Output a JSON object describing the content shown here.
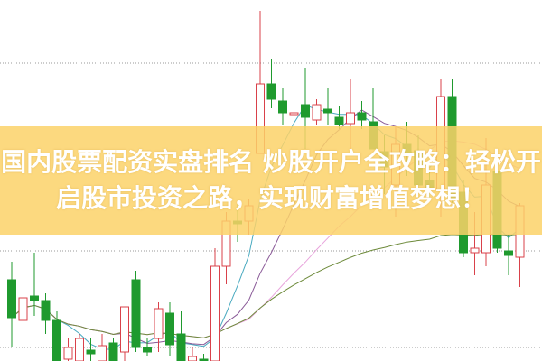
{
  "headline": {
    "line1": "国内股票配资实盘排名 炒股开户全攻略：轻松开",
    "line2": "启股市投资之路，实现财富增值梦想！"
  },
  "chart_data": {
    "type": "candlestick",
    "title": "",
    "xlabel": "",
    "ylabel": "",
    "ylim": [
      0,
      100
    ],
    "grid": "horizontal-dotted",
    "colors": {
      "up": "#d9414a",
      "down": "#1f9a2e",
      "ma": [
        "#4aaac0",
        "#8a5a98",
        "#e8a4dc",
        "#6d8a3a"
      ],
      "banner": "#fcd269"
    },
    "moving_averages": [
      5,
      10,
      20,
      60
    ],
    "candles": [
      [
        22.5,
        27.5,
        3.75,
        12
      ],
      [
        11.25,
        20.5,
        9.5,
        17.5
      ],
      [
        18,
        30,
        12.5,
        16.75
      ],
      [
        16.75,
        18.75,
        7.5,
        11.25
      ],
      [
        11.25,
        13.75,
        0,
        0
      ],
      [
        0.5,
        6.25,
        0,
        3.75
      ],
      [
        0,
        7.5,
        0,
        6.25
      ],
      [
        3,
        6.25,
        0,
        2
      ],
      [
        0,
        7.5,
        0,
        4.25
      ],
      [
        5,
        6.25,
        0,
        0
      ],
      [
        2.5,
        15,
        0,
        15
      ],
      [
        22.5,
        25,
        2.5,
        3.75
      ],
      [
        3.75,
        6.25,
        1.25,
        2.5
      ],
      [
        6.25,
        16.25,
        2.5,
        14.5
      ],
      [
        13.25,
        16.25,
        1.25,
        4.5
      ],
      [
        7.5,
        13.75,
        0,
        0
      ],
      [
        0,
        3.75,
        0,
        1.25
      ],
      [
        0.5,
        2,
        0,
        0
      ],
      [
        0,
        31.25,
        0,
        26.25
      ],
      [
        26.25,
        41.25,
        21.25,
        38.75
      ],
      [
        38.75,
        43.75,
        33,
        38
      ],
      [
        38.75,
        45,
        35,
        43
      ],
      [
        57.5,
        97,
        57.5,
        76.75
      ],
      [
        76.75,
        83.75,
        70,
        72.5
      ],
      [
        72,
        75.5,
        65.5,
        68.75
      ],
      [
        68.25,
        71.25,
        66.25,
        68.75
      ],
      [
        71,
        81.25,
        58.75,
        67.5
      ],
      [
        66.75,
        72.5,
        65.5,
        71
      ],
      [
        69.75,
        75.5,
        65.5,
        68.75
      ],
      [
        67.5,
        70.5,
        64.25,
        65.5
      ],
      [
        65.75,
        78,
        57.5,
        68.75
      ],
      [
        68.75,
        72,
        64.25,
        66.75
      ],
      [
        66.25,
        75.5,
        58.75,
        58.75
      ],
      [
        58,
        62.5,
        46.25,
        53.75
      ],
      [
        48.75,
        65,
        40,
        60
      ],
      [
        60,
        66.25,
        51.25,
        57.5
      ],
      [
        58.25,
        62.5,
        47.5,
        48.75
      ],
      [
        50,
        52.5,
        45,
        47.5
      ],
      [
        47.5,
        78,
        40,
        73.25
      ],
      [
        73.25,
        78,
        43.75,
        45
      ],
      [
        46.75,
        50,
        28.75,
        30
      ],
      [
        30,
        41.25,
        23.75,
        31.25
      ],
      [
        30,
        61.75,
        26.25,
        48.75
      ],
      [
        52.5,
        56.25,
        30,
        31.25
      ],
      [
        30.5,
        35,
        23.75,
        29.25
      ],
      [
        28.75,
        43.75,
        20.5,
        43
      ]
    ]
  }
}
